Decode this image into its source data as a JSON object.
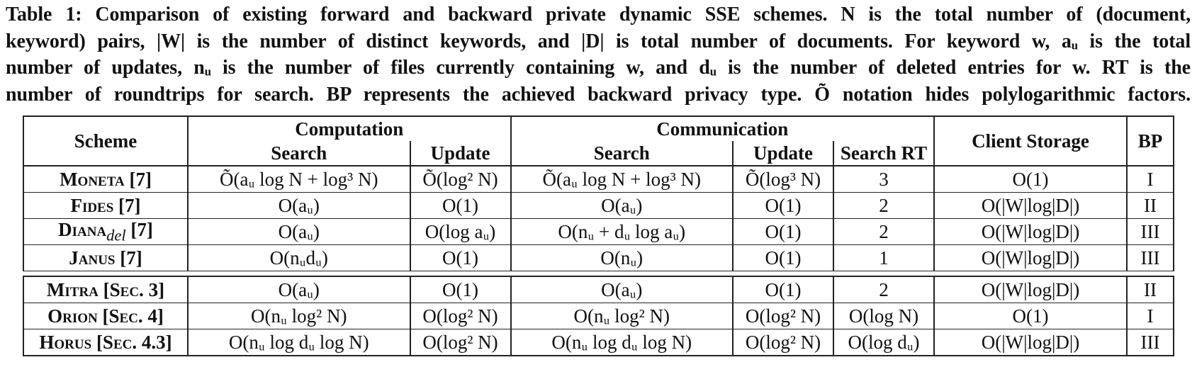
{
  "caption": {
    "lines": [
      "Table 1: Comparison of existing forward and backward private dynamic SSE schemes. N is the total number of (document,",
      "keyword) pairs, |W| is the number of distinct keywords, and |D| is total number of documents. For keyword w, aᵤ is the total",
      "number of updates, nᵤ is the number of files currently containing w, and dᵤ is the number of deleted entries for w. RT is the",
      "number of roundtrips for search. BP represents the achieved backward privacy type. Õ notation hides polylogarithmic factors."
    ]
  },
  "table": {
    "headers": {
      "scheme": "Scheme",
      "computation": "Computation",
      "communication": "Communication",
      "client_storage": "Client Storage",
      "bp": "BP",
      "comp_search": "Search",
      "comp_update": "Update",
      "comm_search": "Search",
      "comm_update": "Update",
      "search_rt": "Search RT"
    },
    "rows": [
      {
        "scheme": "Moneta [7]",
        "comp_search": "Õ(aᵤ log N + log³ N)",
        "comp_update": "Õ(log² N)",
        "comm_search": "Õ(aᵤ log N + log³ N)",
        "comm_update": "Õ(log³ N)",
        "search_rt": "3",
        "client_storage": "O(1)",
        "bp": "I"
      },
      {
        "scheme": "Fides [7]",
        "comp_search": "O(aᵤ)",
        "comp_update": "O(1)",
        "comm_search": "O(aᵤ)",
        "comm_update": "O(1)",
        "search_rt": "2",
        "client_storage": "O(|W|log|D|)",
        "bp": "II"
      },
      {
        "scheme": "Diana_del [7]",
        "comp_search": "O(aᵤ)",
        "comp_update": "O(log aᵤ)",
        "comm_search": "O(nᵤ + dᵤ log aᵤ)",
        "comm_update": "O(1)",
        "search_rt": "2",
        "client_storage": "O(|W|log|D|)",
        "bp": "III"
      },
      {
        "scheme": "Janus [7]",
        "comp_search": "O(nᵤdᵤ)",
        "comp_update": "O(1)",
        "comm_search": "O(nᵤ)",
        "comm_update": "O(1)",
        "search_rt": "1",
        "client_storage": "O(|W|log|D|)",
        "bp": "III"
      },
      {
        "scheme": "Mitra [Sec. 3]",
        "comp_search": "O(aᵤ)",
        "comp_update": "O(1)",
        "comm_search": "O(aᵤ)",
        "comm_update": "O(1)",
        "search_rt": "2",
        "client_storage": "O(|W|log|D|)",
        "bp": "II"
      },
      {
        "scheme": "Orion [Sec. 4]",
        "comp_search": "O(nᵤ log² N)",
        "comp_update": "O(log² N)",
        "comm_search": "O(nᵤ log² N)",
        "comm_update": "O(log² N)",
        "search_rt": "O(log N)",
        "client_storage": "O(1)",
        "bp": "I"
      },
      {
        "scheme": "Horus [Sec. 4.3]",
        "comp_search": "O(nᵤ log dᵤ log N)",
        "comp_update": "O(log² N)",
        "comm_search": "O(nᵤ log dᵤ log N)",
        "comm_update": "O(log² N)",
        "search_rt": "O(log dᵤ)",
        "client_storage": "O(|W|log|D|)",
        "bp": "III"
      }
    ]
  }
}
